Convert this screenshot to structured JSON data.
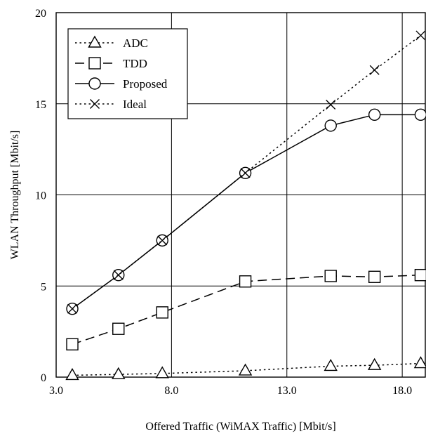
{
  "chart_data": {
    "type": "line",
    "title": "",
    "xlabel": "Offered Traffic (WiMAX Traffic) [Mbit/s]",
    "ylabel": "WLAN Throughput [Mbit/s]",
    "xlim": [
      3.0,
      19.0
    ],
    "ylim": [
      0,
      20
    ],
    "xticks": [
      3.0,
      8.0,
      13.0,
      18.0
    ],
    "xtick_labels": [
      "3.0",
      "8.0",
      "13.0",
      "18.0"
    ],
    "yticks": [
      0,
      5,
      10,
      15,
      20
    ],
    "ytick_labels": [
      "0",
      "5",
      "10",
      "15",
      "20"
    ],
    "grid": true,
    "legend_position": "top-left",
    "series": [
      {
        "name": "ADC",
        "marker": "triangle",
        "dash": "dotted",
        "x": [
          3.7,
          5.7,
          7.6,
          11.2,
          14.9,
          16.8,
          18.8
        ],
        "y": [
          0.1,
          0.15,
          0.2,
          0.35,
          0.6,
          0.65,
          0.75
        ]
      },
      {
        "name": "TDD",
        "marker": "square",
        "dash": "dashed",
        "x": [
          3.7,
          5.7,
          7.6,
          11.2,
          14.9,
          16.8,
          18.8
        ],
        "y": [
          1.8,
          2.65,
          3.55,
          5.25,
          5.55,
          5.5,
          5.6
        ]
      },
      {
        "name": "Proposed",
        "marker": "circle",
        "dash": "solid",
        "x": [
          3.7,
          5.7,
          7.6,
          11.2,
          14.9,
          16.8,
          18.8
        ],
        "y": [
          3.75,
          5.6,
          7.5,
          11.2,
          13.8,
          14.4,
          14.4
        ]
      },
      {
        "name": "Ideal",
        "marker": "cross",
        "dash": "dotted",
        "x": [
          3.7,
          5.7,
          7.6,
          11.2,
          14.9,
          16.8,
          18.8
        ],
        "y": [
          3.75,
          5.6,
          7.5,
          11.2,
          14.95,
          16.85,
          18.75
        ]
      }
    ]
  }
}
